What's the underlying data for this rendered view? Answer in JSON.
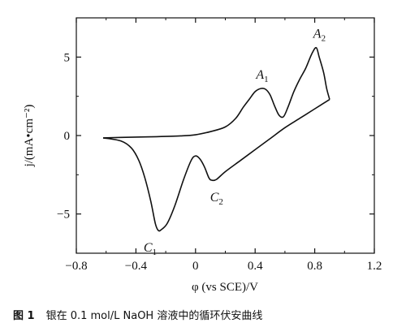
{
  "chart_data": {
    "type": "line",
    "xlabel": "φ (vs SCE)/V",
    "ylabel": "j/(mA•cm⁻²)",
    "xlim": [
      -0.8,
      1.2
    ],
    "ylim": [
      -7.5,
      7.5
    ],
    "xticks": [
      -0.8,
      -0.4,
      0,
      0.4,
      0.8,
      1.2
    ],
    "xtick_labels": [
      "−0.8",
      "−0.4",
      "0",
      "0.4",
      "0.8",
      "1.2"
    ],
    "yticks": [
      -5,
      0,
      5
    ],
    "ytick_labels": [
      "−5",
      "0",
      "5"
    ],
    "grid": false,
    "legend": "none",
    "series": [
      {
        "values_label": "anodic sweep",
        "x": [
          -0.62,
          -0.5,
          -0.3,
          -0.1,
          0.0,
          0.1,
          0.2,
          0.27,
          0.32,
          0.36,
          0.4,
          0.44,
          0.47,
          0.5,
          0.53,
          0.56,
          0.59,
          0.62,
          0.66,
          0.7,
          0.74,
          0.78,
          0.81,
          0.83,
          0.86,
          0.88,
          0.9
        ],
        "y": [
          -0.15,
          -0.12,
          -0.08,
          -0.02,
          0.05,
          0.25,
          0.55,
          1.1,
          1.8,
          2.3,
          2.8,
          3.0,
          2.95,
          2.6,
          1.9,
          1.3,
          1.2,
          1.8,
          2.8,
          3.6,
          4.3,
          5.2,
          5.6,
          5.0,
          4.0,
          3.0,
          2.3
        ]
      },
      {
        "values_label": "cathodic sweep",
        "x": [
          0.9,
          0.85,
          0.8,
          0.7,
          0.6,
          0.5,
          0.4,
          0.3,
          0.2,
          0.14,
          0.11,
          0.09,
          0.06,
          0.03,
          0.0,
          -0.03,
          -0.08,
          -0.14,
          -0.19,
          -0.23,
          -0.25,
          -0.27,
          -0.3,
          -0.34,
          -0.38,
          -0.43,
          -0.5,
          -0.62
        ],
        "y": [
          2.3,
          2.0,
          1.7,
          1.1,
          0.5,
          -0.2,
          -0.9,
          -1.6,
          -2.3,
          -2.8,
          -2.85,
          -2.7,
          -2.0,
          -1.5,
          -1.3,
          -1.6,
          -2.8,
          -4.5,
          -5.6,
          -6.0,
          -6.05,
          -5.6,
          -4.2,
          -2.7,
          -1.6,
          -0.8,
          -0.35,
          -0.15
        ]
      }
    ],
    "annotations": [
      {
        "letter": "A",
        "sub": "1",
        "x": 0.47,
        "y": 3.0
      },
      {
        "letter": "A",
        "sub": "2",
        "x": 0.81,
        "y": 5.6
      },
      {
        "letter": "C",
        "sub": "1",
        "x": -0.25,
        "y": -6.05
      },
      {
        "letter": "C",
        "sub": "2",
        "x": 0.12,
        "y": -2.85
      }
    ]
  },
  "caption": {
    "figure_number": "图 1",
    "text": "银在 0.1 mol/L NaOH 溶液中的循环伏安曲线"
  }
}
